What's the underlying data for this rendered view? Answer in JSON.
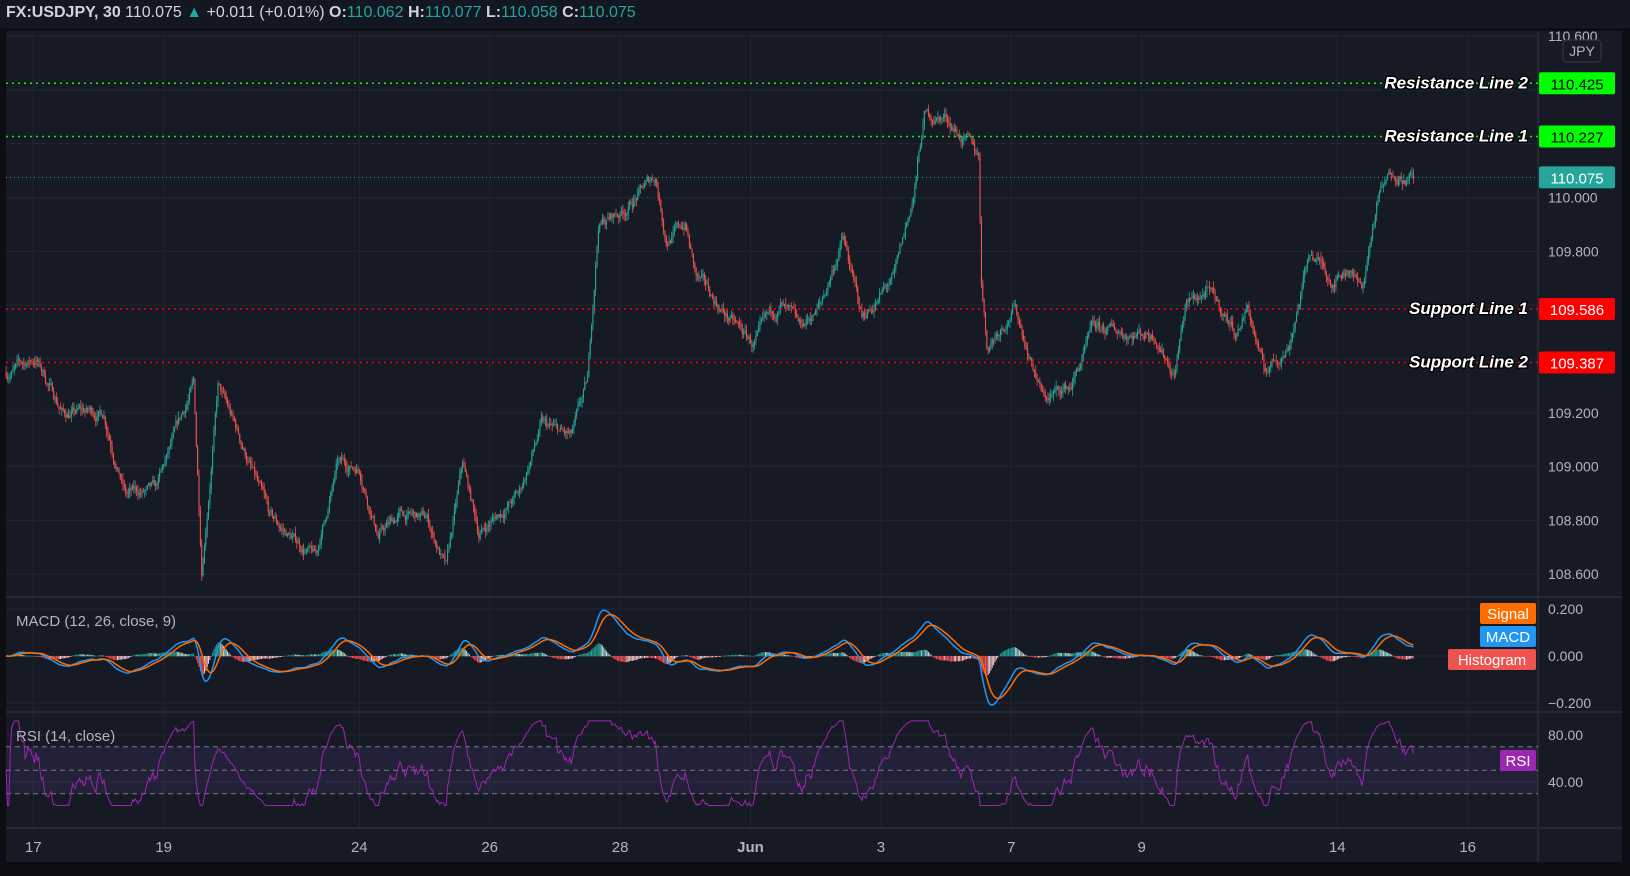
{
  "header": {
    "symbol": "FX:USDJPY, 30",
    "last": "110.075",
    "change": "+0.011 (+0.01%)",
    "o_label": "O:",
    "o": "110.062",
    "h_label": "H:",
    "h": "110.077",
    "l_label": "L:",
    "l": "110.058",
    "c_label": "C:",
    "c": "110.075",
    "up_icon": "triangle-up-icon"
  },
  "colors": {
    "background": "#161a25",
    "grid": "#222633",
    "up": "#26a69a",
    "down": "#ef5350",
    "resistance": "#00ff00",
    "support": "#ff0000",
    "macd": "#2196f3",
    "signal": "#ff6d00",
    "histogram": "#ef5350",
    "rsi": "#9c27b0"
  },
  "chart_data": [
    {
      "type": "candlestick",
      "pane": "price",
      "symbol": "FX:USDJPY",
      "interval": "30",
      "currency_label": "JPY",
      "ylim": [
        108.5,
        110.62
      ],
      "y_ticks": [
        "110.600",
        "110.400",
        "110.200",
        "110.000",
        "109.800",
        "109.600",
        "109.400",
        "109.200",
        "109.000",
        "108.800",
        "108.600"
      ],
      "x_ticks": [
        {
          "label": "17",
          "date": "05-17 00:00"
        },
        {
          "label": "19",
          "date": "05-19 00:00"
        },
        {
          "label": "24",
          "date": "05-24 00:00"
        },
        {
          "label": "26",
          "date": "05-26 00:00"
        },
        {
          "label": "28",
          "date": "05-28 00:00"
        },
        {
          "label": "Jun",
          "date": "06-01 00:00"
        },
        {
          "label": "3",
          "date": "06-03 00:00"
        },
        {
          "label": "7",
          "date": "06-07 00:00"
        },
        {
          "label": "9",
          "date": "06-09 00:00"
        },
        {
          "label": "14",
          "date": "06-14 00:00"
        },
        {
          "label": "16",
          "date": "06-16 00:00"
        }
      ],
      "trading_days": [
        "05-14",
        "05-17",
        "05-18",
        "05-19",
        "05-20",
        "05-21",
        "05-24",
        "05-25",
        "05-26",
        "05-27",
        "05-28",
        "05-31",
        "06-01",
        "06-02",
        "06-03",
        "06-04",
        "06-07",
        "06-08",
        "06-09",
        "06-10",
        "06-11",
        "06-14",
        "06-15",
        "06-16"
      ],
      "approx_close_path": [
        [
          "05-14 14:00",
          109.35
        ],
        [
          "05-17 01:00",
          109.4
        ],
        [
          "05-17 11:00",
          109.2
        ],
        [
          "05-18 02:00",
          109.2
        ],
        [
          "05-18 10:00",
          108.9
        ],
        [
          "05-18 21:00",
          108.9
        ],
        [
          "05-19 11:00",
          109.3
        ],
        [
          "05-19 14:00",
          108.62
        ],
        [
          "05-19 20:00",
          109.3
        ],
        [
          "05-20 08:00",
          109.0
        ],
        [
          "05-20 15:00",
          108.8
        ],
        [
          "05-21 08:00",
          108.66
        ],
        [
          "05-21 16:00",
          109.0
        ],
        [
          "05-24 00:00",
          109.0
        ],
        [
          "05-24 07:00",
          108.75
        ],
        [
          "05-24 15:00",
          108.82
        ],
        [
          "05-25 01:00",
          108.8
        ],
        [
          "05-25 08:00",
          108.62
        ],
        [
          "05-25 14:00",
          109.0
        ],
        [
          "05-25 20:00",
          108.75
        ],
        [
          "05-26 11:00",
          108.9
        ],
        [
          "05-26 19:00",
          109.15
        ],
        [
          "05-27 06:00",
          109.1
        ],
        [
          "05-27 12:00",
          109.3
        ],
        [
          "05-27 16:00",
          109.9
        ],
        [
          "05-28 01:00",
          109.95
        ],
        [
          "05-28 13:00",
          110.08
        ],
        [
          "05-28 17:00",
          109.85
        ],
        [
          "05-31 00:00",
          109.9
        ],
        [
          "05-31 04:00",
          109.7
        ],
        [
          "05-31 16:00",
          109.55
        ],
        [
          "06-01 01:00",
          109.45
        ],
        [
          "06-01 11:00",
          109.6
        ],
        [
          "06-01 18:00",
          109.5
        ],
        [
          "06-02 02:00",
          109.6
        ],
        [
          "06-02 10:00",
          109.85
        ],
        [
          "06-02 17:00",
          109.55
        ],
        [
          "06-03 05:00",
          109.7
        ],
        [
          "06-03 12:00",
          110.0
        ],
        [
          "06-03 16:00",
          110.3
        ],
        [
          "06-04 00:00",
          110.3
        ],
        [
          "06-04 12:00",
          110.15
        ],
        [
          "06-04 13:00",
          109.7
        ],
        [
          "06-04 15:00",
          109.45
        ],
        [
          "06-07 01:00",
          109.6
        ],
        [
          "06-07 12:00",
          109.25
        ],
        [
          "06-07 22:00",
          109.3
        ],
        [
          "06-08 06:00",
          109.5
        ],
        [
          "06-08 17:00",
          109.5
        ],
        [
          "06-09 05:00",
          109.5
        ],
        [
          "06-09 12:00",
          109.35
        ],
        [
          "06-09 16:00",
          109.6
        ],
        [
          "06-10 00:00",
          109.65
        ],
        [
          "06-10 11:00",
          109.5
        ],
        [
          "06-10 15:00",
          109.6
        ],
        [
          "06-10 21:00",
          109.35
        ],
        [
          "06-11 06:00",
          109.45
        ],
        [
          "06-11 14:00",
          109.8
        ],
        [
          "06-11 22:00",
          109.7
        ],
        [
          "06-14 05:00",
          109.75
        ],
        [
          "06-14 09:00",
          109.65
        ],
        [
          "06-14 15:00",
          110.0
        ],
        [
          "06-14 21:00",
          110.1
        ],
        [
          "06-15 04:00",
          110.075
        ]
      ],
      "horizontal_lines": [
        {
          "name": "Resistance Line 2",
          "value": 110.425,
          "price_label": "110.425",
          "kind": "resistance"
        },
        {
          "name": "Resistance Line 1",
          "value": 110.227,
          "price_label": "110.227",
          "kind": "resistance"
        },
        {
          "name": "Support Line 1",
          "value": 109.586,
          "price_label": "109.586",
          "kind": "support"
        },
        {
          "name": "Support Line 2",
          "value": 109.387,
          "price_label": "109.387",
          "kind": "support"
        }
      ],
      "last_price": {
        "value": 110.075,
        "label": "110.075"
      }
    },
    {
      "type": "line",
      "pane": "macd",
      "title": "MACD (12, 26, close, 9)",
      "ylim": [
        -0.21,
        0.21
      ],
      "y_ticks": [
        "0.200",
        "0.000",
        "−0.200"
      ],
      "legend": [
        "Signal",
        "MACD",
        "Histogram"
      ],
      "legend_placement": "right"
    },
    {
      "type": "line",
      "pane": "rsi",
      "title": "RSI (14, close)",
      "ylim": [
        20,
        92
      ],
      "bands": [
        70,
        50,
        30
      ],
      "y_ticks": [
        "80.00",
        "40.00"
      ],
      "legend": [
        "RSI"
      ],
      "legend_placement": "right"
    }
  ]
}
